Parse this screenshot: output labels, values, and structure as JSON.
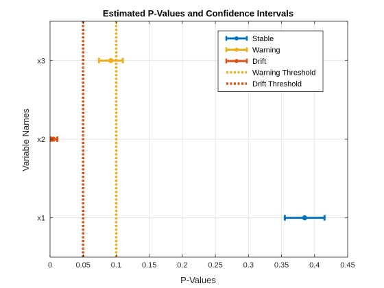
{
  "chart_data": {
    "type": "errorbar",
    "title": "Estimated P-Values and Confidence Intervals",
    "xlabel": "P-Values",
    "ylabel": "Variable Names",
    "xlim": [
      0,
      0.45
    ],
    "x_ticks": [
      0,
      0.05,
      0.1,
      0.15,
      0.2,
      0.25,
      0.3,
      0.35,
      0.4,
      0.45
    ],
    "x_tick_labels": [
      "0",
      "0.05",
      "0.1",
      "0.15",
      "0.2",
      "0.25",
      "0.3",
      "0.35",
      "0.4",
      "0.45"
    ],
    "categories": [
      "x1",
      "x2",
      "x3"
    ],
    "grid": true,
    "legend_position": "top-right",
    "series": [
      {
        "name": "Stable",
        "color": "#0072BD",
        "points": [
          {
            "category": "x1",
            "value": 0.385,
            "low": 0.355,
            "high": 0.415
          }
        ]
      },
      {
        "name": "Warning",
        "color": "#EDB120",
        "points": [
          {
            "category": "x3",
            "value": 0.092,
            "low": 0.074,
            "high": 0.11
          }
        ]
      },
      {
        "name": "Drift",
        "color": "#D95319",
        "points": [
          {
            "category": "x2",
            "value": 0.005,
            "low": 0.001,
            "high": 0.011
          }
        ]
      }
    ],
    "thresholds": [
      {
        "name": "Warning Threshold",
        "value": 0.1,
        "color": "#EDB120"
      },
      {
        "name": "Drift Threshold",
        "value": 0.05,
        "color": "#D95319"
      }
    ]
  }
}
